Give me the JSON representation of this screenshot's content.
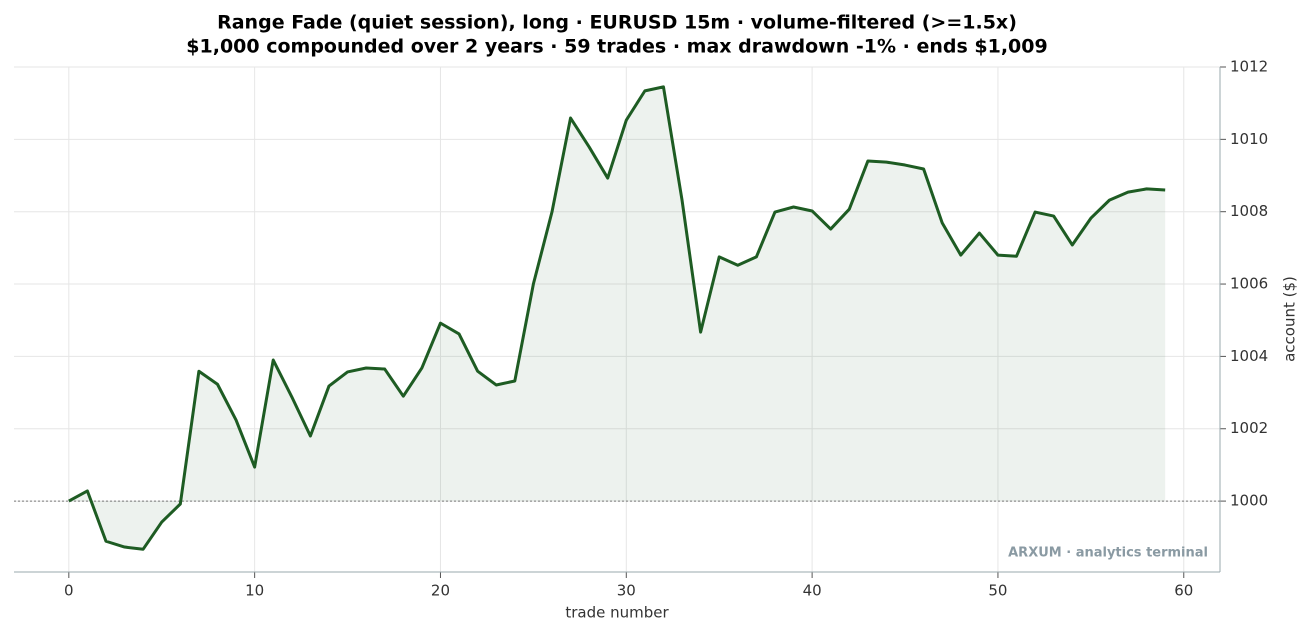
{
  "chart_data": {
    "type": "line",
    "title": "Range Fade (quiet session), long · EURUSD 15m · volume-filtered (>=1.5x)",
    "subtitle": "$1,000 compounded over 2 years · 59 trades · max drawdown -1% · ends $1,009",
    "x_label": "trade number",
    "y_label": "account ($)",
    "annotation": "ARXUM · analytics terminal",
    "x": [
      0,
      1,
      2,
      3,
      4,
      5,
      6,
      7,
      8,
      9,
      10,
      11,
      12,
      13,
      14,
      15,
      16,
      17,
      18,
      19,
      20,
      21,
      22,
      23,
      24,
      25,
      26,
      27,
      28,
      29,
      30,
      31,
      32,
      33,
      34,
      35,
      36,
      37,
      38,
      39,
      40,
      41,
      42,
      43,
      44,
      45,
      46,
      47,
      48,
      49,
      50,
      51,
      52,
      53,
      54,
      55,
      56,
      57,
      58,
      59
    ],
    "series": [
      {
        "name": "account",
        "color": "#1e5c23",
        "values": [
          1000,
          1000.28,
          998.89,
          998.73,
          998.67,
          999.42,
          999.92,
          1003.59,
          1003.23,
          1002.24,
          1000.94,
          1003.9,
          1002.88,
          1001.8,
          1003.18,
          1003.57,
          1003.68,
          1003.65,
          1002.9,
          1003.68,
          1004.92,
          1004.62,
          1003.59,
          1003.21,
          1003.32,
          1006.0,
          1007.99,
          1010.59,
          1009.79,
          1008.93,
          1010.53,
          1011.34,
          1011.45,
          1008.32,
          1004.67,
          1006.75,
          1006.52,
          1006.75,
          1007.99,
          1008.13,
          1008.02,
          1007.52,
          1008.07,
          1009.4,
          1009.37,
          1009.29,
          1009.18,
          1007.69,
          1006.8,
          1007.41,
          1006.8,
          1006.77,
          1007.99,
          1007.88,
          1007.08,
          1007.82,
          1008.32,
          1008.54,
          1008.63,
          1008.6
        ]
      }
    ],
    "baseline": 1000,
    "xlim": [
      -2.95,
      61.95
    ],
    "ylim": [
      998.04,
      1012
    ],
    "xticks": [
      0,
      10,
      20,
      30,
      40,
      50,
      60
    ],
    "yticks": [
      1000,
      1002,
      1004,
      1006,
      1008,
      1010,
      1012
    ],
    "grid": true,
    "y_axis_side": "right"
  }
}
